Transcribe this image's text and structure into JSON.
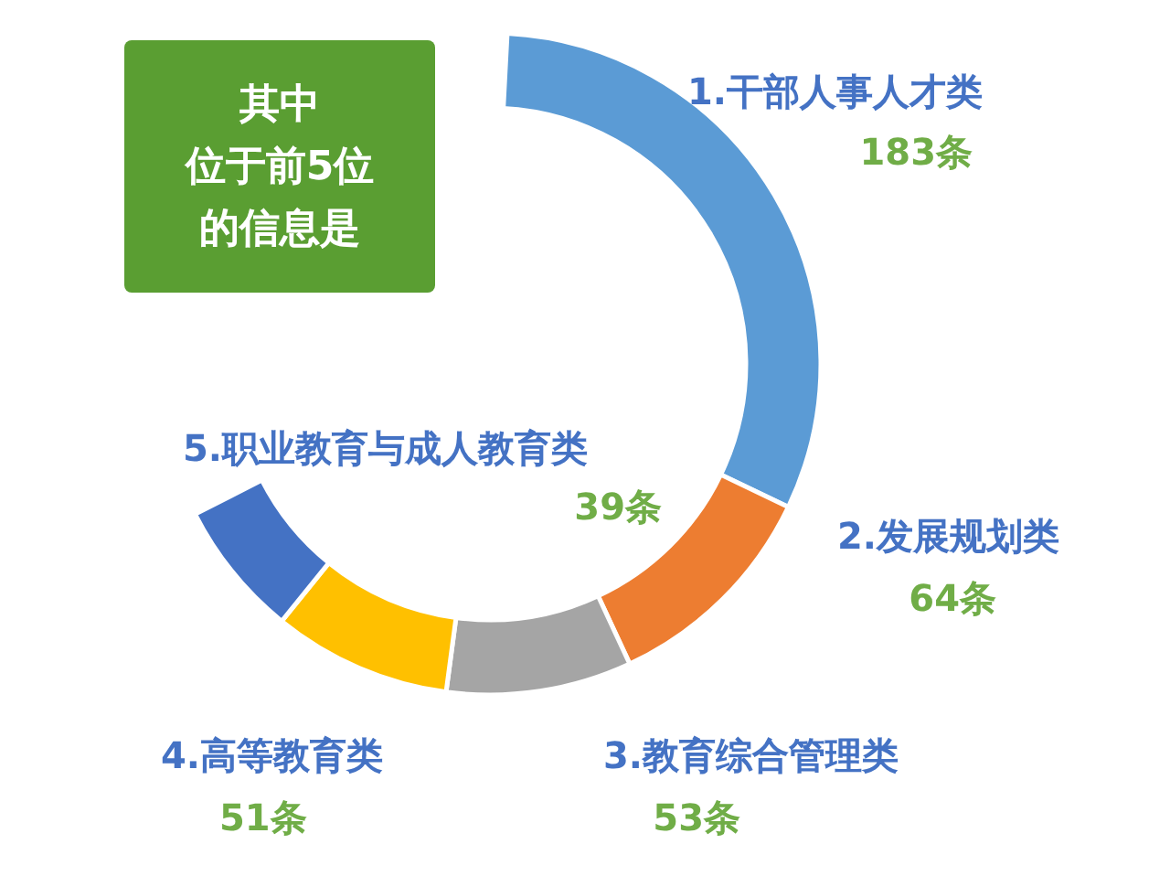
{
  "chart_data": {
    "type": "donut",
    "title": "其中",
    "subtitle": "位于前5位",
    "annotations": [
      "的信息是"
    ],
    "categories": [
      "1.干部人事人才类",
      "2.发展规划类",
      "3.教育综合管理类",
      "4.高等教育类",
      "5.职业教育与成人教育类"
    ],
    "values": [
      183,
      64,
      53,
      51,
      39
    ],
    "value_labels": [
      "183条",
      "64条",
      "53条",
      "51条",
      "39条"
    ],
    "colors": [
      "#5b9bd5",
      "#ed7d31",
      "#a5a5a5",
      "#ffc000",
      "#4472c4"
    ]
  }
}
